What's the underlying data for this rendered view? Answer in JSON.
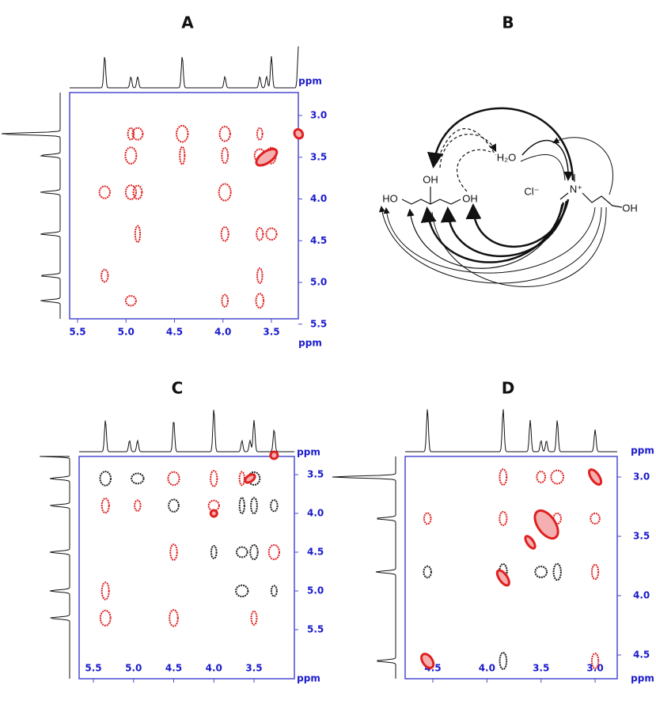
{
  "panels": {
    "a": {
      "label": "A",
      "top_unit": "ppm",
      "right_ticks": [
        "3.0",
        "3.5",
        "4.0",
        "4.5",
        "5.0",
        "5.5"
      ],
      "bottom_ticks": [
        "5.5",
        "5.0",
        "4.5",
        "4.0",
        "3.5"
      ],
      "bottom_unit": "ppm"
    },
    "b": {
      "label": "B",
      "structure": {
        "ho_left": "HO",
        "oh_top": "OH",
        "oh_right": "OH",
        "water": "H₂O",
        "chloride": "Cl⁻",
        "nitrogen": "N⁺",
        "oh_choline": "OH"
      }
    },
    "c": {
      "label": "C",
      "top_unit": "ppm",
      "right_ticks": [
        "3.5",
        "4.0",
        "4.5",
        "5.0",
        "5.5"
      ],
      "bottom_ticks": [
        "5.5",
        "5.0",
        "4.5",
        "4.0",
        "3.5"
      ],
      "bottom_unit": "ppm"
    },
    "d": {
      "label": "D",
      "top_unit": "ppm",
      "right_ticks": [
        "3.0",
        "3.5",
        "4.0",
        "4.5"
      ],
      "bottom_ticks": [
        "4.5",
        "4.0",
        "3.5",
        "3.0"
      ],
      "bottom_unit": "ppm"
    }
  }
}
